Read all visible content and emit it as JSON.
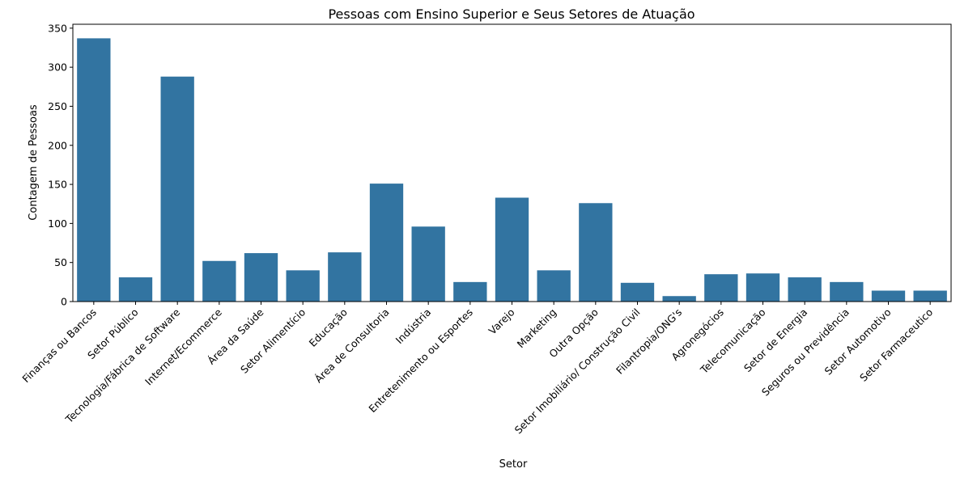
{
  "chart_data": {
    "type": "bar",
    "title": "Pessoas com Ensino Superior e Seus Setores de Atuação",
    "xlabel": "Setor",
    "ylabel": "Contagem de Pessoas",
    "ylim": [
      0,
      355
    ],
    "yticks": [
      0,
      50,
      100,
      150,
      200,
      250,
      300,
      350
    ],
    "grid": false,
    "bar_color": "#3274a1",
    "categories": [
      "Finanças ou Bancos",
      "Setor Público",
      "Tecnologia/Fábrica de Software",
      "Internet/Ecommerce",
      "Área da Saúde",
      "Setor Alimentício",
      "Educação",
      "Área de Consultoria",
      "Indústria",
      "Entretenimento ou Esportes",
      "Varejo",
      "Marketing",
      "Outra Opção",
      "Setor Imobiliário/ Construção Civil",
      "Filantropia/ONG's",
      "Agronegócios",
      "Telecomunicação",
      "Setor de Energia",
      "Seguros ou Previdência",
      "Setor Automotivo",
      "Setor Farmaceutico"
    ],
    "values": [
      337,
      31,
      288,
      52,
      62,
      40,
      63,
      151,
      96,
      25,
      133,
      40,
      126,
      24,
      7,
      35,
      36,
      31,
      25,
      14,
      14
    ]
  }
}
